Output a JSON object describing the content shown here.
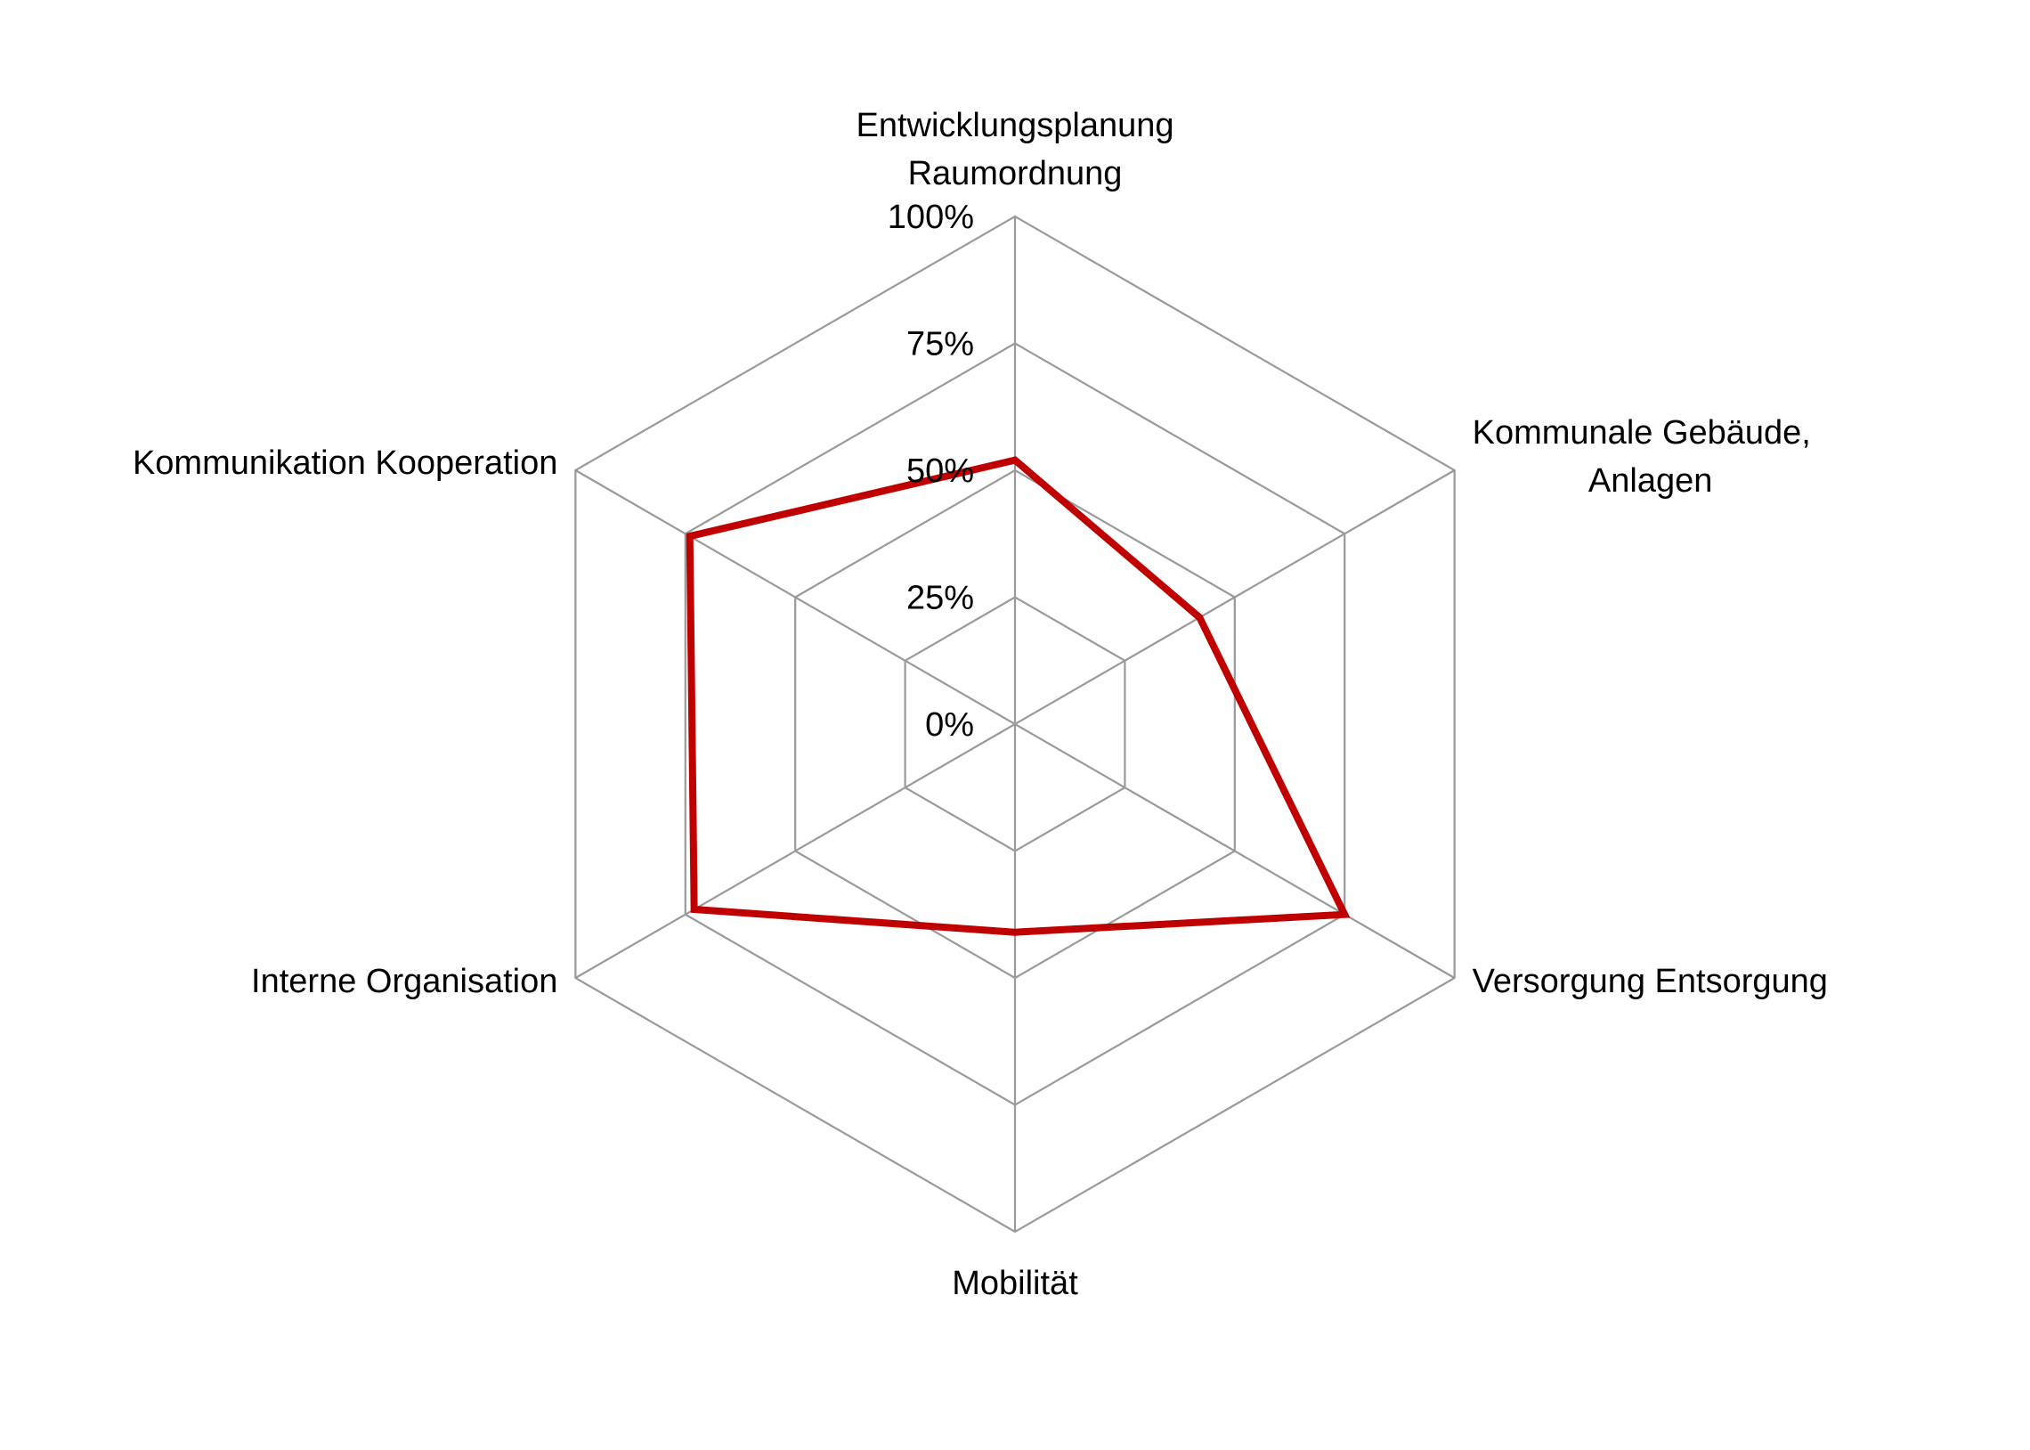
{
  "chart_data": {
    "type": "radar",
    "axes": [
      {
        "label": [
          "Entwicklungsplanung",
          "Raumordnung"
        ]
      },
      {
        "label": [
          "Kommunale Gebäude,",
          "Anlagen"
        ]
      },
      {
        "label": [
          "Versorgung Entsorgung"
        ]
      },
      {
        "label": [
          "Mobilität"
        ]
      },
      {
        "label": [
          "Interne Organisation"
        ]
      },
      {
        "label": [
          "Kommunikation Kooperation"
        ]
      }
    ],
    "ticks": [
      "0%",
      "25%",
      "50%",
      "75%",
      "100%"
    ],
    "tick_values": [
      0,
      25,
      50,
      75,
      100
    ],
    "range": [
      0,
      100
    ],
    "series": [
      {
        "values": [
          52,
          42,
          75,
          41,
          73,
          74
        ],
        "color": "#c00000"
      }
    ],
    "grid": true,
    "grid_color": "#9a9a9a"
  }
}
